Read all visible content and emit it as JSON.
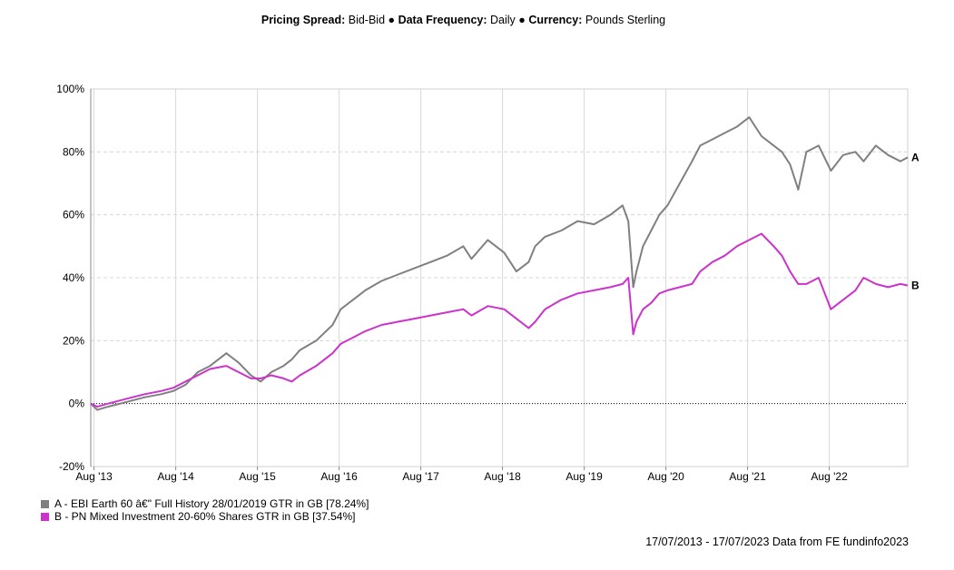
{
  "header": {
    "spread_label": "Pricing Spread:",
    "spread_value": "Bid-Bid",
    "freq_label": "Data Frequency:",
    "freq_value": "Daily",
    "currency_label": "Currency:",
    "currency_value": "Pounds Sterling",
    "separator": "●"
  },
  "footer": {
    "text": "17/07/2013 - 17/07/2023 Data from FE fundinfo2023"
  },
  "chart_data": {
    "type": "line",
    "x_tick_labels": [
      "Aug '13",
      "Aug '14",
      "Aug '15",
      "Aug '16",
      "Aug '17",
      "Aug '18",
      "Aug '19",
      "Aug '20",
      "Aug '21",
      "Aug '22"
    ],
    "x_tick_years": [
      2013.58,
      2014.58,
      2015.58,
      2016.58,
      2017.58,
      2018.58,
      2019.58,
      2020.58,
      2021.58,
      2022.58
    ],
    "xlim": [
      2013.54,
      2023.54
    ],
    "ylim": [
      -20,
      100
    ],
    "y_ticks": [
      -20,
      0,
      20,
      40,
      60,
      80,
      100
    ],
    "y_tick_labels": [
      "-20%",
      "0%",
      "20%",
      "40%",
      "60%",
      "80%",
      "100%"
    ],
    "grid": true,
    "series": [
      {
        "name": "A - EBI Earth 60 â€\" Full History 28/01/2019 GTR in GB [78.24%]",
        "end_label": "A",
        "color": "#808080",
        "x": [
          2013.54,
          2013.62,
          2013.75,
          2013.9,
          2014.05,
          2014.2,
          2014.4,
          2014.55,
          2014.7,
          2014.85,
          2015.0,
          2015.2,
          2015.35,
          2015.5,
          2015.62,
          2015.75,
          2015.9,
          2016.0,
          2016.1,
          2016.3,
          2016.5,
          2016.6,
          2016.75,
          2016.9,
          2017.1,
          2017.3,
          2017.5,
          2017.7,
          2017.9,
          2018.1,
          2018.2,
          2018.4,
          2018.6,
          2018.75,
          2018.9,
          2018.98,
          2019.1,
          2019.3,
          2019.5,
          2019.7,
          2019.9,
          2020.05,
          2020.12,
          2020.18,
          2020.22,
          2020.3,
          2020.4,
          2020.5,
          2020.6,
          2020.75,
          2020.9,
          2021.0,
          2021.15,
          2021.3,
          2021.45,
          2021.6,
          2021.75,
          2021.9,
          2022.0,
          2022.1,
          2022.2,
          2022.3,
          2022.45,
          2022.6,
          2022.75,
          2022.9,
          2023.0,
          2023.15,
          2023.3,
          2023.45,
          2023.54
        ],
        "y": [
          0,
          -2,
          -1,
          0,
          1,
          2,
          3,
          4,
          6,
          10,
          12,
          16,
          13,
          9,
          7,
          10,
          12,
          14,
          17,
          20,
          25,
          30,
          33,
          36,
          39,
          41,
          43,
          45,
          47,
          50,
          46,
          52,
          48,
          42,
          45,
          50,
          53,
          55,
          58,
          57,
          60,
          63,
          58,
          37,
          42,
          50,
          55,
          60,
          63,
          70,
          77,
          82,
          84,
          86,
          88,
          91,
          85,
          82,
          80,
          76,
          68,
          80,
          82,
          74,
          79,
          80,
          77,
          82,
          79,
          77,
          78.24
        ]
      },
      {
        "name": "B - PN Mixed Investment 20-60% Shares GTR in GB [37.54%]",
        "end_label": "B",
        "color": "#cc33cc",
        "x": [
          2013.54,
          2013.62,
          2013.75,
          2013.9,
          2014.05,
          2014.2,
          2014.4,
          2014.55,
          2014.7,
          2014.85,
          2015.0,
          2015.2,
          2015.35,
          2015.5,
          2015.62,
          2015.75,
          2015.9,
          2016.0,
          2016.1,
          2016.3,
          2016.5,
          2016.6,
          2016.75,
          2016.9,
          2017.1,
          2017.3,
          2017.5,
          2017.7,
          2017.9,
          2018.1,
          2018.2,
          2018.4,
          2018.6,
          2018.75,
          2018.9,
          2018.98,
          2019.1,
          2019.3,
          2019.5,
          2019.7,
          2019.9,
          2020.05,
          2020.12,
          2020.18,
          2020.22,
          2020.3,
          2020.4,
          2020.5,
          2020.6,
          2020.75,
          2020.9,
          2021.0,
          2021.15,
          2021.3,
          2021.45,
          2021.6,
          2021.75,
          2021.9,
          2022.0,
          2022.1,
          2022.2,
          2022.3,
          2022.45,
          2022.6,
          2022.75,
          2022.9,
          2023.0,
          2023.15,
          2023.3,
          2023.45,
          2023.54
        ],
        "y": [
          0,
          -1,
          0,
          1,
          2,
          3,
          4,
          5,
          7,
          9,
          11,
          12,
          10,
          8,
          8,
          9,
          8,
          7,
          9,
          12,
          16,
          19,
          21,
          23,
          25,
          26,
          27,
          28,
          29,
          30,
          28,
          31,
          30,
          27,
          24,
          26,
          30,
          33,
          35,
          36,
          37,
          38,
          40,
          22,
          26,
          30,
          32,
          35,
          36,
          37,
          38,
          42,
          45,
          47,
          50,
          52,
          54,
          50,
          47,
          42,
          38,
          38,
          40,
          30,
          33,
          36,
          40,
          38,
          37,
          38,
          37.54
        ]
      }
    ]
  }
}
